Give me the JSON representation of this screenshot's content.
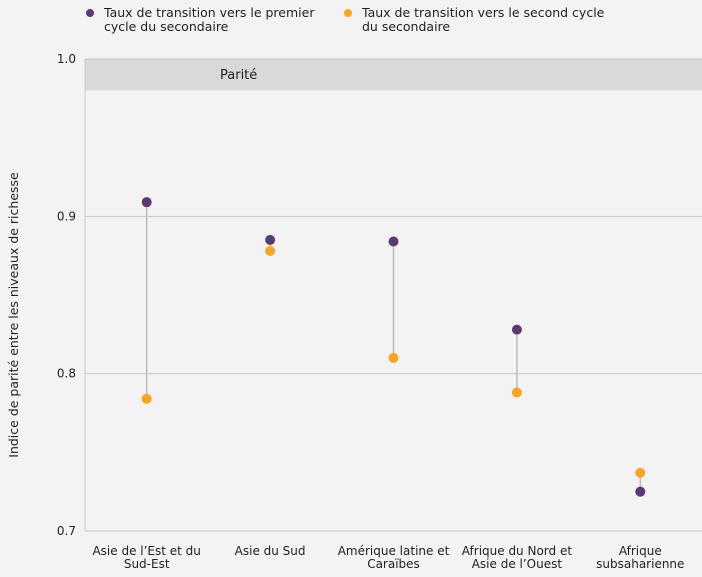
{
  "chart_data": {
    "type": "scatter",
    "ylabel": "Indice de parité entre les niveaux de richesse",
    "ylim": [
      0.7,
      1.0
    ],
    "yticks": [
      "0.7",
      "0.8",
      "0.9",
      "1.0"
    ],
    "ytick_values": [
      0.7,
      0.8,
      0.9,
      1.0
    ],
    "categories": [
      [
        "Asie de l’Est et du",
        "Sud-Est"
      ],
      [
        "Asie du Sud"
      ],
      [
        "Amérique latine et",
        "Caraïbes"
      ],
      [
        "Afrique du Nord et",
        "Asie de l’Ouest"
      ],
      [
        "Afrique",
        "subsaharienne"
      ]
    ],
    "series": [
      {
        "name": [
          "Taux de transition vers le premier",
          "cycle du secondaire"
        ],
        "color": "#5b3a74",
        "values": [
          0.909,
          0.885,
          0.884,
          0.828,
          0.725
        ]
      },
      {
        "name": [
          "Taux de transition vers le second cycle",
          "du secondaire"
        ],
        "color": "#f5a623",
        "values": [
          0.784,
          0.878,
          0.81,
          0.788,
          0.737
        ]
      }
    ],
    "parity_band": {
      "label": "Parité",
      "from": 0.98,
      "to": 1.0,
      "color": "#d9d9d9"
    },
    "grid": true,
    "legend_position": "top"
  }
}
